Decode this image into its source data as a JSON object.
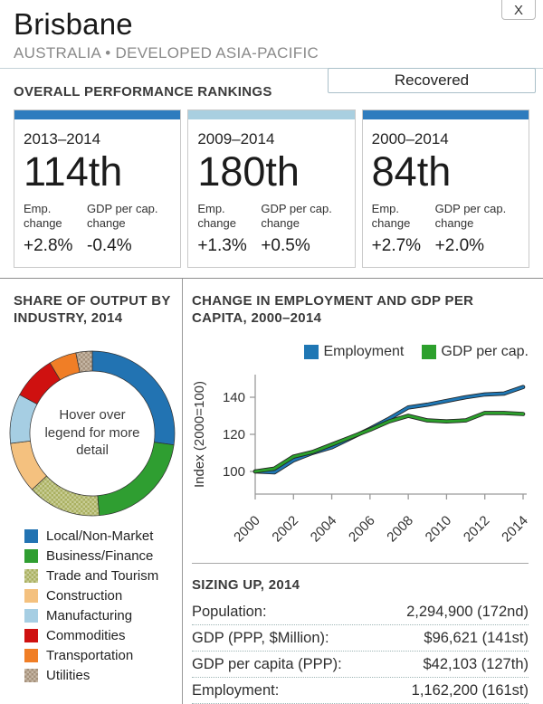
{
  "header": {
    "title": "Brisbane",
    "subtitle": "AUSTRALIA • DEVELOPED ASIA-PACIFIC",
    "close_label": "X",
    "status_badge": "Recovered"
  },
  "rankings": {
    "heading": "OVERALL PERFORMANCE RANKINGS",
    "cards": [
      {
        "period": "2013–2014",
        "rank": "114th",
        "emp_label": "Emp. change",
        "gdp_label": "GDP per cap. change",
        "emp_change": "+2.8%",
        "gdp_change": "-0.4%",
        "accent_color": "#2e7cbe"
      },
      {
        "period": "2009–2014",
        "rank": "180th",
        "emp_label": "Emp. change",
        "gdp_label": "GDP per cap. change",
        "emp_change": "+1.3%",
        "gdp_change": "+0.5%",
        "accent_color": "#a9cfe0"
      },
      {
        "period": "2000–2014",
        "rank": "84th",
        "emp_label": "Emp. change",
        "gdp_label": "GDP per cap. change",
        "emp_change": "+2.7%",
        "gdp_change": "+2.0%",
        "accent_color": "#2e7cbe"
      }
    ]
  },
  "industry": {
    "heading": "SHARE OF OUTPUT BY INDUSTRY, 2014",
    "donut_center_text": "Hover over legend for more detail",
    "legend": [
      {
        "label": "Local/Non-Market",
        "color": "#2273b2",
        "pattern": false
      },
      {
        "label": "Business/Finance",
        "color": "#2f9e31",
        "pattern": false
      },
      {
        "label": "Trade and Tourism",
        "color": "#aab060",
        "color2": "#c8cd96",
        "pattern": true
      },
      {
        "label": "Construction",
        "color": "#f4c17f",
        "pattern": false
      },
      {
        "label": "Manufacturing",
        "color": "#a6cee3",
        "pattern": false
      },
      {
        "label": "Commodities",
        "color": "#cf1110",
        "pattern": false
      },
      {
        "label": "Transportation",
        "color": "#f07e26",
        "pattern": false
      },
      {
        "label": "Utilities",
        "color": "#a5917c",
        "color2": "#c6b7a5",
        "pattern": true
      }
    ]
  },
  "employment_chart": {
    "heading": "CHANGE IN EMPLOYMENT AND GDP PER CAPITA, 2000–2014"
  },
  "chart_data": [
    {
      "type": "pie",
      "subtype": "donut",
      "title": "SHARE OF OUTPUT BY INDUSTRY, 2014",
      "labels": [
        "Local/Non-Market",
        "Business/Finance",
        "Trade and Tourism",
        "Construction",
        "Manufacturing",
        "Commodities",
        "Transportation",
        "Utilities"
      ],
      "values": [
        27.2,
        21.4,
        14.4,
        10.0,
        9.7,
        8.6,
        5.4,
        3.2
      ],
      "center_text": "Hover over legend for more detail",
      "legend_position": "bottom-left"
    },
    {
      "type": "line",
      "title": "CHANGE IN EMPLOYMENT AND GDP PER CAPITA, 2000–2014",
      "x": [
        2000,
        2001,
        2002,
        2003,
        2004,
        2005,
        2006,
        2007,
        2008,
        2009,
        2010,
        2011,
        2012,
        2013,
        2014
      ],
      "series": [
        {
          "name": "Employment",
          "color": "#1f77b4",
          "values": [
            100,
            99.5,
            106,
            110,
            113,
            118,
            123,
            128.5,
            134.5,
            136,
            138,
            140,
            141.5,
            142,
            145.5
          ]
        },
        {
          "name": "GDP per cap.",
          "color": "#2ca02c",
          "values": [
            100,
            101.5,
            108,
            110.5,
            114.5,
            118.5,
            122.5,
            127,
            130,
            127.5,
            127,
            127.5,
            131.5,
            131.5,
            131
          ]
        }
      ],
      "ylabel": "Index (2000=100)",
      "yticks": [
        100,
        120,
        140
      ],
      "ylim": [
        88,
        150
      ],
      "xticks": [
        2000,
        2002,
        2004,
        2006,
        2008,
        2010,
        2012,
        2014
      ],
      "grid": false,
      "legend_position": "top"
    }
  ],
  "sizing": {
    "heading": "SIZING UP, 2014",
    "rows": [
      {
        "label": "Population:",
        "value": "2,294,900 (172nd)"
      },
      {
        "label": "GDP (PPP, $Million):",
        "value": "$96,621 (141st)"
      },
      {
        "label": "GDP per capita (PPP):",
        "value": "$42,103 (127th)"
      },
      {
        "label": "Employment:",
        "value": "1,162,200 (161st)"
      }
    ]
  }
}
